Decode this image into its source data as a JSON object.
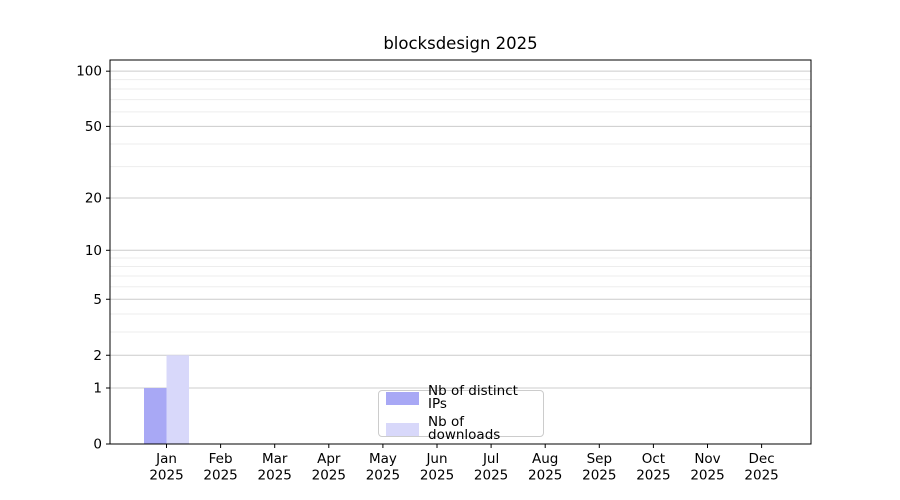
{
  "chart_data": {
    "type": "bar",
    "title": "blocksdesign 2025",
    "categories": [
      "Jan",
      "Feb",
      "Mar",
      "Apr",
      "May",
      "Jun",
      "Jul",
      "Aug",
      "Sep",
      "Oct",
      "Nov",
      "Dec"
    ],
    "category_year": "2025",
    "series": [
      {
        "name": "Nb of distinct IPs",
        "color": "#a8a8f5",
        "values": [
          1,
          0,
          0,
          0,
          0,
          0,
          0,
          0,
          0,
          0,
          0,
          0
        ]
      },
      {
        "name": "Nb of downloads",
        "color": "#d8d8fa",
        "values": [
          2,
          0,
          0,
          0,
          0,
          0,
          0,
          0,
          0,
          0,
          0,
          0
        ]
      }
    ],
    "yscale": "log1p",
    "ylim": [
      0,
      115
    ],
    "y_major_ticks": [
      0,
      1,
      2,
      5,
      10,
      20,
      50,
      100
    ],
    "y_minor_ticks": [
      3,
      4,
      6,
      7,
      8,
      9,
      30,
      40,
      60,
      70,
      80,
      90
    ],
    "grid": "horizontal",
    "legend_position": "lower center",
    "colors": {
      "major_grid": "#cccccc",
      "minor_grid": "#ededed",
      "spine": "#000000",
      "text": "#000000",
      "legend_border": "#cccccc"
    }
  }
}
